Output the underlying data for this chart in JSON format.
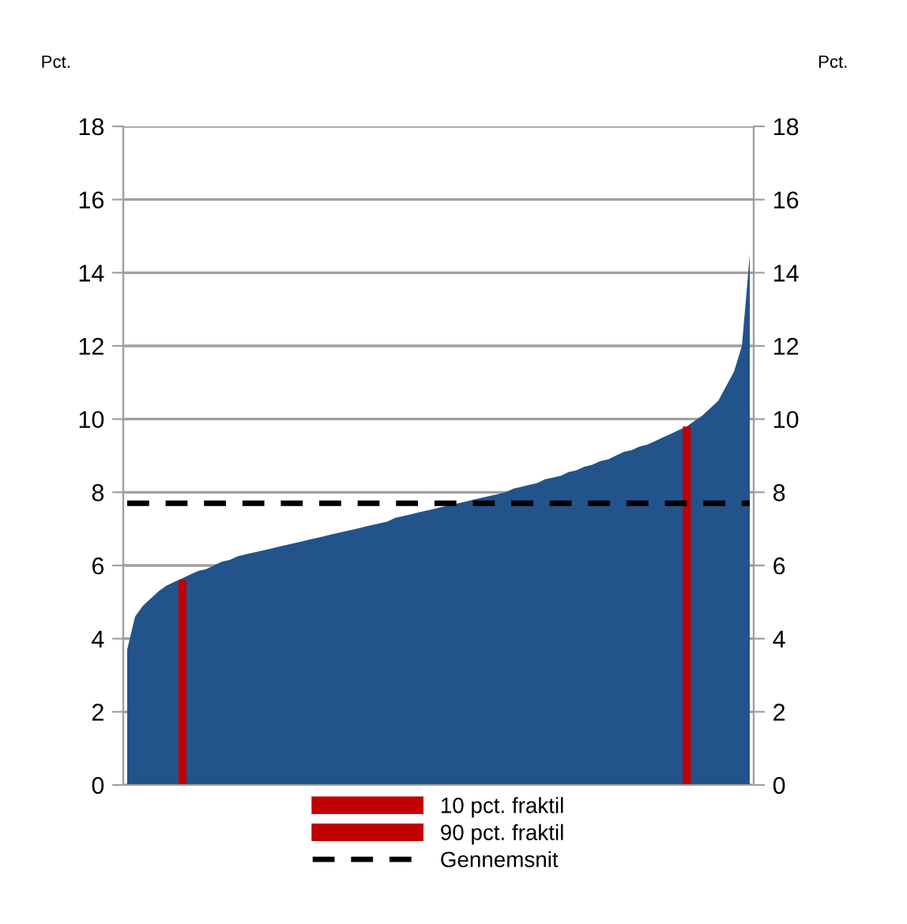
{
  "chart_data": {
    "type": "area",
    "ylabel": "Pct.",
    "y2label": "Pct.",
    "categories": [
      null,
      null,
      null,
      null,
      null,
      null,
      null,
      null,
      null,
      null,
      null,
      null,
      null,
      null,
      null,
      null,
      null,
      null,
      null,
      null,
      null,
      null,
      null,
      null,
      null,
      null,
      null,
      null,
      null,
      null,
      null,
      null,
      null,
      null,
      null,
      null,
      null,
      null,
      null,
      null,
      null,
      null,
      null,
      null,
      null,
      null,
      null,
      null,
      null,
      null,
      null,
      null,
      null,
      null,
      null,
      null,
      null,
      null,
      null,
      null,
      null,
      null,
      null,
      null,
      null,
      null,
      null,
      null,
      null,
      null,
      null,
      null,
      null,
      null,
      null,
      null,
      null,
      null,
      null,
      null
    ],
    "series": [
      {
        "color": "#23538b",
        "values": [
          3.7,
          4.6,
          4.9,
          5.1,
          5.3,
          5.45,
          5.55,
          5.65,
          5.75,
          5.85,
          5.9,
          6.0,
          6.1,
          6.15,
          6.25,
          6.3,
          6.35,
          6.4,
          6.45,
          6.5,
          6.55,
          6.6,
          6.65,
          6.7,
          6.75,
          6.8,
          6.85,
          6.9,
          6.95,
          7.0,
          7.05,
          7.1,
          7.15,
          7.2,
          7.3,
          7.35,
          7.4,
          7.45,
          7.5,
          7.55,
          7.6,
          7.65,
          7.7,
          7.75,
          7.8,
          7.85,
          7.9,
          7.95,
          8.0,
          8.1,
          8.15,
          8.2,
          8.25,
          8.35,
          8.4,
          8.45,
          8.55,
          8.6,
          8.7,
          8.75,
          8.85,
          8.9,
          9.0,
          9.1,
          9.15,
          9.25,
          9.3,
          9.4,
          9.5,
          9.6,
          9.7,
          9.8,
          9.95,
          10.1,
          10.3,
          10.5,
          10.9,
          11.3,
          12.0,
          14.5
        ]
      },
      {
        "type": "bar",
        "name": "10 pct. fraktil",
        "color": "#c00000",
        "values": [
          null,
          null,
          null,
          null,
          null,
          null,
          null,
          5.6,
          null,
          null,
          null,
          null,
          null,
          null,
          null,
          null,
          null,
          null,
          null,
          null,
          null,
          null,
          null,
          null,
          null,
          null,
          null,
          null,
          null,
          null,
          null,
          null,
          null,
          null,
          null,
          null,
          null,
          null,
          null,
          null,
          null,
          null,
          null,
          null,
          null,
          null,
          null,
          null,
          null,
          null,
          null,
          null,
          null,
          null,
          null,
          null,
          null,
          null,
          null,
          null,
          null,
          null,
          null,
          null,
          null,
          null,
          null,
          null,
          null,
          null,
          null,
          null,
          null,
          null,
          null,
          null,
          null,
          null,
          null,
          null
        ]
      },
      {
        "type": "bar",
        "name": "90 pct. fraktil",
        "color": "#c00000",
        "values": [
          null,
          null,
          null,
          null,
          null,
          null,
          null,
          null,
          null,
          null,
          null,
          null,
          null,
          null,
          null,
          null,
          null,
          null,
          null,
          null,
          null,
          null,
          null,
          null,
          null,
          null,
          null,
          null,
          null,
          null,
          null,
          null,
          null,
          null,
          null,
          null,
          null,
          null,
          null,
          null,
          null,
          null,
          null,
          null,
          null,
          null,
          null,
          null,
          null,
          null,
          null,
          null,
          null,
          null,
          null,
          null,
          null,
          null,
          null,
          null,
          null,
          null,
          null,
          null,
          null,
          null,
          null,
          null,
          null,
          null,
          null,
          9.8,
          null,
          null,
          null,
          null,
          null,
          null,
          null,
          null
        ]
      },
      {
        "type": "line",
        "name": "Gennemsnit",
        "color": "#000000",
        "line_style": "dashed",
        "values": [
          7.7,
          7.7,
          7.7,
          7.7,
          7.7,
          7.7,
          7.7,
          7.7,
          7.7,
          7.7,
          7.7,
          7.7,
          7.7,
          7.7,
          7.7,
          7.7,
          7.7,
          7.7,
          7.7,
          7.7,
          7.7,
          7.7,
          7.7,
          7.7,
          7.7,
          7.7,
          7.7,
          7.7,
          7.7,
          7.7,
          7.7,
          7.7,
          7.7,
          7.7,
          7.7,
          7.7,
          7.7,
          7.7,
          7.7,
          7.7,
          7.7,
          7.7,
          7.7,
          7.7,
          7.7,
          7.7,
          7.7,
          7.7,
          7.7,
          7.7,
          7.7,
          7.7,
          7.7,
          7.7,
          7.7,
          7.7,
          7.7,
          7.7,
          7.7,
          7.7,
          7.7,
          7.7,
          7.7,
          7.7,
          7.7,
          7.7,
          7.7,
          7.7,
          7.7,
          7.7,
          7.7,
          7.7,
          7.7,
          7.7,
          7.7,
          7.7,
          7.7,
          7.7,
          7.7,
          7.7
        ]
      }
    ],
    "ylim": [
      0,
      18
    ],
    "yticks": [
      0,
      2,
      4,
      6,
      8,
      10,
      12,
      14,
      16,
      18
    ],
    "y2lim": [
      0,
      18
    ],
    "y2ticks": [
      0,
      2,
      4,
      6,
      8,
      10,
      12,
      14,
      16,
      18
    ],
    "grid": "y",
    "legend": "bottom"
  }
}
